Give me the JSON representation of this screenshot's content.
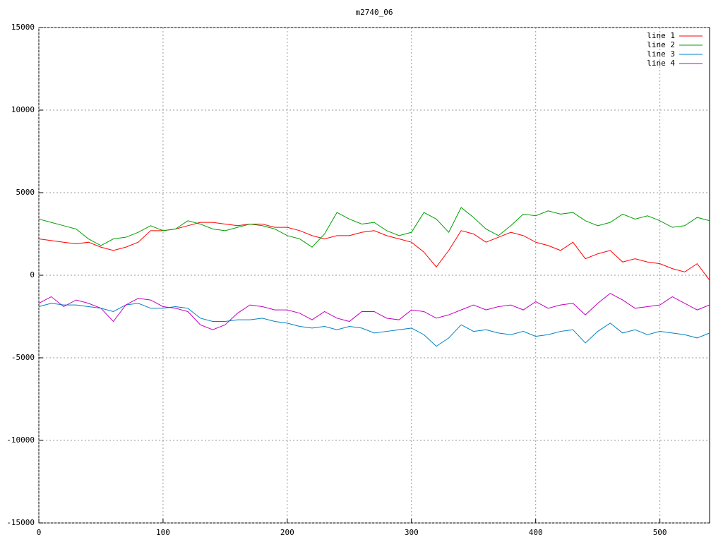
{
  "chart_data": {
    "type": "line",
    "title": "m2740_06",
    "x": [
      0,
      10,
      20,
      30,
      40,
      50,
      60,
      70,
      80,
      90,
      100,
      110,
      120,
      130,
      140,
      150,
      160,
      170,
      180,
      190,
      200,
      210,
      220,
      230,
      240,
      250,
      260,
      270,
      280,
      290,
      300,
      310,
      320,
      330,
      340,
      350,
      360,
      370,
      380,
      390,
      400,
      410,
      420,
      430,
      440,
      450,
      460,
      470,
      480,
      490,
      500,
      510,
      520,
      530,
      540
    ],
    "xlim": [
      0,
      540
    ],
    "xticks": [
      0,
      100,
      200,
      300,
      400,
      500
    ],
    "ylim": [
      -15000,
      15000
    ],
    "yticks": [
      -15000,
      -10000,
      -5000,
      0,
      5000,
      10000,
      15000
    ],
    "grid": true,
    "legend": "top-right",
    "series": [
      {
        "name": "line 1",
        "color": "#ff0000",
        "values": [
          2200,
          2100,
          2000,
          1900,
          2000,
          1700,
          1500,
          1700,
          2000,
          2700,
          2700,
          2800,
          3000,
          3200,
          3200,
          3100,
          3000,
          3100,
          3100,
          2900,
          2900,
          2700,
          2400,
          2200,
          2400,
          2400,
          2600,
          2700,
          2400,
          2200,
          2000,
          1400,
          500,
          1500,
          2700,
          2500,
          2000,
          2300,
          2600,
          2400,
          2000,
          1800,
          1500,
          2000,
          1000,
          1300,
          1500,
          800,
          1000,
          800,
          700,
          400,
          200,
          700,
          -300
        ]
      },
      {
        "name": "line 2",
        "color": "#00a000",
        "values": [
          3400,
          3200,
          3000,
          2800,
          2200,
          1800,
          2200,
          2300,
          2600,
          3000,
          2700,
          2800,
          3300,
          3100,
          2800,
          2700,
          2900,
          3100,
          3000,
          2800,
          2400,
          2200,
          1700,
          2500,
          3800,
          3400,
          3100,
          3200,
          2700,
          2400,
          2600,
          3800,
          3400,
          2600,
          4100,
          3500,
          2800,
          2400,
          3000,
          3700,
          3600,
          3900,
          3700,
          3800,
          3300,
          3000,
          3200,
          3700,
          3400,
          3600,
          3300,
          2900,
          3000,
          3500,
          3300
        ]
      },
      {
        "name": "line 3",
        "color": "#0080c0",
        "values": [
          -1900,
          -1700,
          -1800,
          -1800,
          -1900,
          -2000,
          -2200,
          -1800,
          -1700,
          -2000,
          -2000,
          -1900,
          -2000,
          -2600,
          -2800,
          -2800,
          -2700,
          -2700,
          -2600,
          -2800,
          -2900,
          -3100,
          -3200,
          -3100,
          -3300,
          -3100,
          -3200,
          -3500,
          -3400,
          -3300,
          -3200,
          -3600,
          -4300,
          -3800,
          -3000,
          -3400,
          -3300,
          -3500,
          -3600,
          -3400,
          -3700,
          -3600,
          -3400,
          -3300,
          -4100,
          -3400,
          -2900,
          -3500,
          -3300,
          -3600,
          -3400,
          -3500,
          -3600,
          -3800,
          -3500
        ]
      },
      {
        "name": "line 4",
        "color": "#c000c0",
        "values": [
          -1700,
          -1300,
          -1900,
          -1500,
          -1700,
          -2000,
          -2800,
          -1800,
          -1400,
          -1500,
          -1900,
          -2000,
          -2200,
          -3000,
          -3300,
          -3000,
          -2300,
          -1800,
          -1900,
          -2100,
          -2100,
          -2300,
          -2700,
          -2200,
          -2600,
          -2800,
          -2200,
          -2200,
          -2600,
          -2700,
          -2100,
          -2200,
          -2600,
          -2400,
          -2100,
          -1800,
          -2100,
          -1900,
          -1800,
          -2100,
          -1600,
          -2000,
          -1800,
          -1700,
          -2400,
          -1700,
          -1100,
          -1500,
          -2000,
          -1900,
          -1800,
          -1300,
          -1700,
          -2100,
          -1800
        ]
      }
    ]
  }
}
